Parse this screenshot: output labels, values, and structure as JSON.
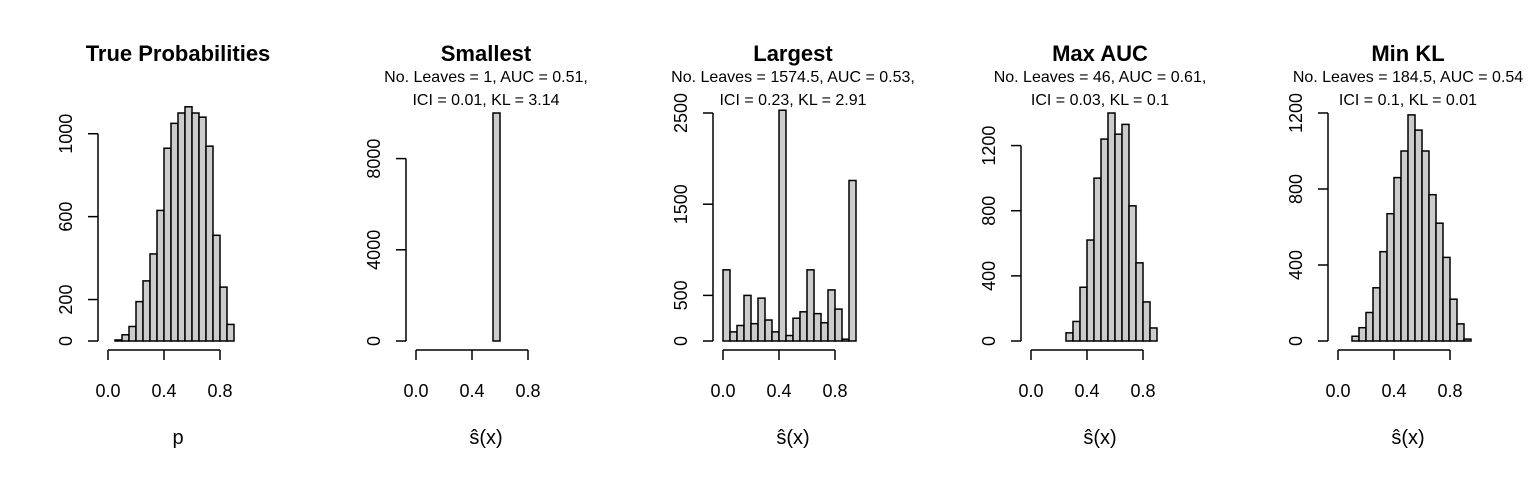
{
  "chart_data": [
    {
      "type": "bar",
      "title": "True Probabilities",
      "subtitle_lines": [],
      "xlabel": "p",
      "xlim": [
        0,
        1
      ],
      "x_ticks": [
        0.0,
        0.4,
        0.8
      ],
      "x_tick_labels": [
        "0.0",
        "0.4",
        "0.8"
      ],
      "ylim": [
        0,
        1100
      ],
      "y_ticks": [
        0,
        200,
        600,
        1000
      ],
      "y_tick_labels": [
        "0",
        "200",
        "600",
        "1000"
      ],
      "bin_width": 0.05,
      "bin_starts": [
        0.0,
        0.05,
        0.1,
        0.15,
        0.2,
        0.25,
        0.3,
        0.35,
        0.4,
        0.45,
        0.5,
        0.55,
        0.6,
        0.65,
        0.7,
        0.75,
        0.8,
        0.85,
        0.9,
        0.95
      ],
      "values": [
        0,
        5,
        30,
        70,
        190,
        290,
        420,
        630,
        930,
        1050,
        1100,
        1130,
        1100,
        1080,
        940,
        510,
        260,
        80,
        0,
        0
      ]
    },
    {
      "type": "bar",
      "title": "Smallest",
      "subtitle_lines": [
        "No. Leaves = 1, AUC = 0.51,",
        "ICI = 0.01, KL = 3.14"
      ],
      "xlabel": "ŝ(x)",
      "xlim": [
        0,
        1
      ],
      "x_ticks": [
        0.0,
        0.4,
        0.8
      ],
      "x_tick_labels": [
        "0.0",
        "0.4",
        "0.8"
      ],
      "ylim": [
        0,
        10000
      ],
      "y_ticks": [
        0,
        4000,
        8000
      ],
      "y_tick_labels": [
        "0",
        "4000",
        "8000"
      ],
      "bin_width": 0.05,
      "bin_starts": [
        0.0,
        0.05,
        0.1,
        0.15,
        0.2,
        0.25,
        0.3,
        0.35,
        0.4,
        0.45,
        0.5,
        0.55,
        0.6,
        0.65,
        0.7,
        0.75,
        0.8,
        0.85,
        0.9,
        0.95
      ],
      "values": [
        0,
        0,
        0,
        0,
        0,
        0,
        0,
        0,
        0,
        0,
        0,
        10000,
        0,
        0,
        0,
        0,
        0,
        0,
        0,
        0
      ]
    },
    {
      "type": "bar",
      "title": "Largest",
      "subtitle_lines": [
        "No. Leaves = 1574.5, AUC = 0.53,",
        "ICI = 0.23, KL = 2.91"
      ],
      "xlabel": "ŝ(x)",
      "xlim": [
        0,
        1
      ],
      "x_ticks": [
        0.0,
        0.4,
        0.8
      ],
      "x_tick_labels": [
        "0.0",
        "0.4",
        "0.8"
      ],
      "ylim": [
        0,
        2500
      ],
      "y_ticks": [
        0,
        500,
        1500,
        2500
      ],
      "y_tick_labels": [
        "0",
        "500",
        "1500",
        "2500"
      ],
      "bin_width": 0.05,
      "bin_starts": [
        0.0,
        0.05,
        0.1,
        0.15,
        0.2,
        0.25,
        0.3,
        0.35,
        0.4,
        0.45,
        0.5,
        0.55,
        0.6,
        0.65,
        0.7,
        0.75,
        0.8,
        0.85,
        0.9,
        0.95
      ],
      "values": [
        780,
        100,
        170,
        500,
        190,
        470,
        230,
        100,
        2530,
        60,
        250,
        320,
        780,
        300,
        200,
        560,
        350,
        20,
        1760,
        0
      ]
    },
    {
      "type": "bar",
      "title": "Max AUC",
      "subtitle_lines": [
        "No. Leaves = 46, AUC = 0.61,",
        "ICI = 0.03, KL = 0.1"
      ],
      "xlabel": "ŝ(x)",
      "xlim": [
        0,
        1
      ],
      "x_ticks": [
        0.0,
        0.4,
        0.8
      ],
      "x_tick_labels": [
        "0.0",
        "0.4",
        "0.8"
      ],
      "ylim": [
        0,
        1400
      ],
      "y_ticks": [
        0,
        400,
        800,
        1200
      ],
      "y_tick_labels": [
        "0",
        "400",
        "800",
        "1200"
      ],
      "bin_width": 0.05,
      "bin_starts": [
        0.0,
        0.05,
        0.1,
        0.15,
        0.2,
        0.25,
        0.3,
        0.35,
        0.4,
        0.45,
        0.5,
        0.55,
        0.6,
        0.65,
        0.7,
        0.75,
        0.8,
        0.85,
        0.9,
        0.95
      ],
      "values": [
        0,
        0,
        0,
        0,
        0,
        50,
        120,
        330,
        620,
        1000,
        1240,
        1400,
        1270,
        1330,
        830,
        480,
        240,
        80,
        0,
        0
      ]
    },
    {
      "type": "bar",
      "title": "Min KL",
      "subtitle_lines": [
        "No. Leaves = 184.5, AUC = 0.54",
        "ICI = 0.1, KL = 0.01"
      ],
      "xlabel": "ŝ(x)",
      "xlim": [
        0,
        1
      ],
      "x_ticks": [
        0.0,
        0.4,
        0.8
      ],
      "x_tick_labels": [
        "0.0",
        "0.4",
        "0.8"
      ],
      "ylim": [
        0,
        1200
      ],
      "y_ticks": [
        0,
        400,
        800,
        1200
      ],
      "y_tick_labels": [
        "0",
        "400",
        "800",
        "1200"
      ],
      "bin_width": 0.05,
      "bin_starts": [
        0.0,
        0.05,
        0.1,
        0.15,
        0.2,
        0.25,
        0.3,
        0.35,
        0.4,
        0.45,
        0.5,
        0.55,
        0.6,
        0.65,
        0.7,
        0.75,
        0.8,
        0.85,
        0.9,
        0.95
      ],
      "values": [
        0,
        0,
        25,
        70,
        150,
        280,
        470,
        670,
        860,
        1000,
        1190,
        1110,
        1000,
        770,
        620,
        440,
        220,
        90,
        10,
        0
      ]
    }
  ]
}
